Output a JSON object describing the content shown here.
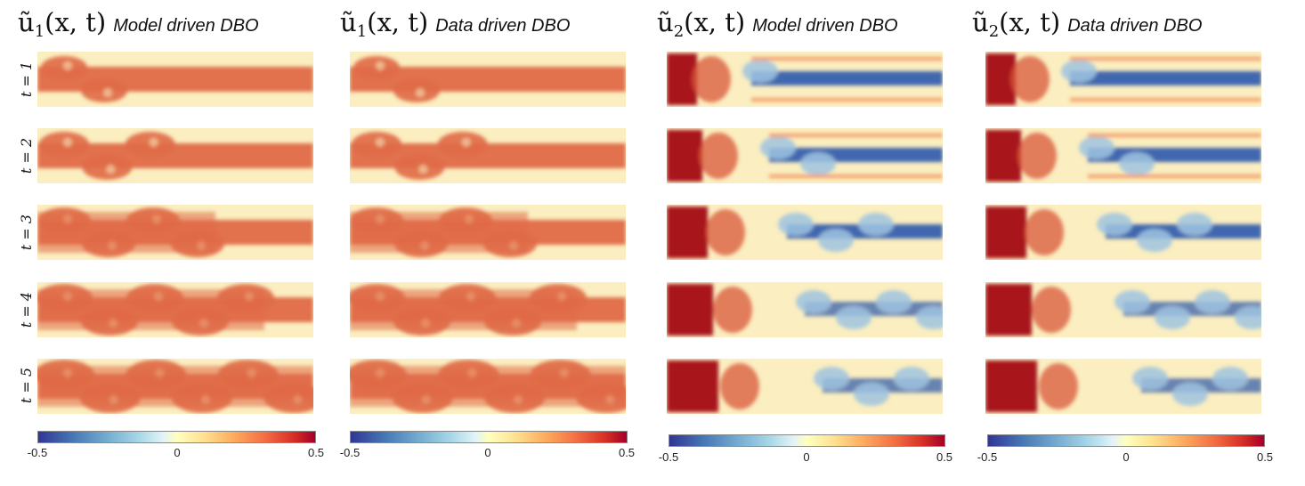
{
  "columns": [
    {
      "field": "ũ",
      "index": "1",
      "args": "(x, t)",
      "method": "Model driven DBO",
      "kind": "u1"
    },
    {
      "field": "ũ",
      "index": "1",
      "args": "(x, t)",
      "method": "Data driven DBO",
      "kind": "u1"
    },
    {
      "field": "ũ",
      "index": "2",
      "args": "(x, t)",
      "method": "Model driven DBO",
      "kind": "u2"
    },
    {
      "field": "ũ",
      "index": "2",
      "args": "(x, t)",
      "method": "Data driven DBO",
      "kind": "u2"
    }
  ],
  "rows": [
    {
      "label": "t = 1"
    },
    {
      "label": "t = 2"
    },
    {
      "label": "t = 3"
    },
    {
      "label": "t = 4"
    },
    {
      "label": "t = 5"
    }
  ],
  "colorbar": {
    "min_label": "-0.5",
    "mid_label": "0",
    "max_label": "0.5",
    "colormap": [
      "#313695",
      "#4575b4",
      "#74add1",
      "#abd9e9",
      "#e0f3f8",
      "#ffffbf",
      "#fee090",
      "#fdae61",
      "#f46d43",
      "#d73027",
      "#a50026"
    ]
  },
  "colors": {
    "u1_low": "#fbeec0",
    "u1_high": "#e06a47",
    "u2_high": "#a8141f",
    "u2_low": "#3660ae"
  }
}
